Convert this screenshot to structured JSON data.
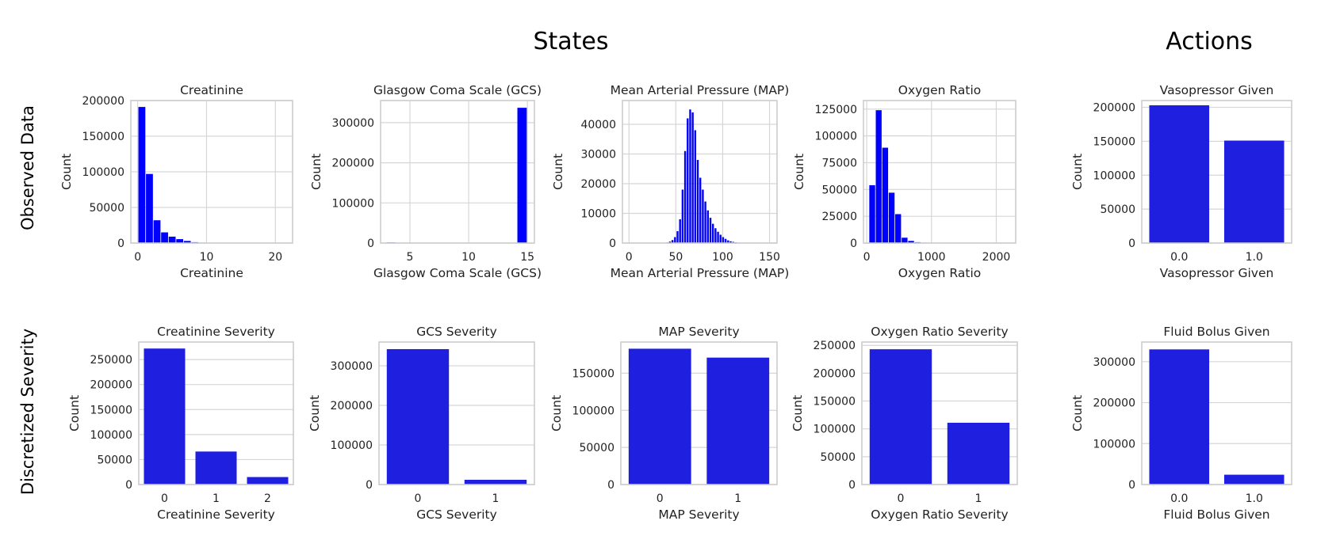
{
  "figure": {
    "section_titles": {
      "states": "States",
      "actions": "Actions"
    },
    "row_labels": {
      "observed": "Observed Data",
      "discretized": "Discretized Severity"
    }
  },
  "colors": {
    "bar": "#0000ff",
    "bar_categorical": "#1f1fe0",
    "grid": "#d6d6d6",
    "frame": "#cccccc"
  },
  "chart_data": [
    {
      "id": "creatinine",
      "type": "bar",
      "subtype": "histogram",
      "title": "Creatinine",
      "xlabel": "Creatinine",
      "ylabel": "Count",
      "xlim": [
        -1,
        22.5
      ],
      "ylim": [
        0,
        200000
      ],
      "xticks": [
        0,
        10,
        20
      ],
      "yticks": [
        0,
        50000,
        100000,
        150000,
        200000
      ],
      "bin_width": 1.1,
      "bins": [
        0.1,
        1.2,
        2.3,
        3.4,
        4.5,
        5.6,
        6.7,
        7.8,
        8.9,
        10.0
      ],
      "values": [
        191000,
        97000,
        32000,
        15000,
        9000,
        5500,
        3000,
        1200,
        600,
        300
      ]
    },
    {
      "id": "gcs",
      "type": "bar",
      "subtype": "histogram",
      "title": "Glasgow Coma Scale (GCS)",
      "xlabel": "Glasgow Coma Scale (GCS)",
      "ylabel": "Count",
      "xlim": [
        2.5,
        15.6
      ],
      "ylim": [
        0,
        355000
      ],
      "xticks": [
        5,
        10,
        15
      ],
      "yticks": [
        0,
        100000,
        200000,
        300000
      ],
      "bin_width": 0.85,
      "bins": [
        3.0,
        3.85,
        13.3,
        14.15
      ],
      "values": [
        1500,
        500,
        1000,
        337000
      ]
    },
    {
      "id": "map",
      "type": "bar",
      "subtype": "histogram",
      "title": "Mean Arterial Pressure (MAP)",
      "xlabel": "Mean Arterial Pressure (MAP)",
      "ylabel": "Count",
      "xlim": [
        -7,
        158
      ],
      "ylim": [
        0,
        48000
      ],
      "xticks": [
        0,
        50,
        100,
        150
      ],
      "yticks": [
        0,
        10000,
        20000,
        30000,
        40000
      ],
      "bin_width": 2.7,
      "bins": [
        40.0,
        42.7,
        45.4,
        48.1,
        50.8,
        53.5,
        56.2,
        58.9,
        61.6,
        64.3,
        67.0,
        69.7,
        72.4,
        75.1,
        77.8,
        80.5,
        83.2,
        85.9,
        88.6,
        91.3,
        94.0,
        96.7,
        99.4,
        102.1,
        104.8,
        107.5,
        110.2,
        112.9,
        115.6,
        118.3
      ],
      "values": [
        200,
        500,
        1000,
        2000,
        4000,
        8000,
        18000,
        31000,
        42000,
        45000,
        44000,
        38000,
        28000,
        22000,
        18000,
        14000,
        11000,
        8500,
        6500,
        5000,
        3800,
        2800,
        2000,
        1400,
        900,
        600,
        400,
        250,
        150,
        100
      ]
    },
    {
      "id": "oxygen",
      "type": "bar",
      "subtype": "histogram",
      "title": "Oxygen Ratio",
      "xlabel": "Oxygen Ratio",
      "ylabel": "Count",
      "xlim": [
        -50,
        2300
      ],
      "ylim": [
        0,
        133000
      ],
      "xticks": [
        0,
        1000,
        2000
      ],
      "yticks": [
        0,
        25000,
        50000,
        75000,
        100000,
        125000
      ],
      "bin_width": 100,
      "bins": [
        40,
        140,
        240,
        340,
        440,
        540,
        640,
        740,
        840,
        940,
        1040,
        1140,
        1240
      ],
      "values": [
        54000,
        124000,
        89000,
        47000,
        27000,
        5000,
        2000,
        800,
        400,
        200,
        100,
        50,
        30
      ]
    },
    {
      "id": "vasopressor",
      "type": "bar",
      "title": "Vasopressor Given",
      "xlabel": "Vasopressor Given",
      "ylabel": "Count",
      "categories": [
        "0.0",
        "1.0"
      ],
      "values": [
        203000,
        151000
      ],
      "ylim": [
        0,
        210000
      ],
      "yticks": [
        0,
        50000,
        100000,
        150000,
        200000
      ]
    },
    {
      "id": "creatinine_sev",
      "type": "bar",
      "title": "Creatinine Severity",
      "xlabel": "Creatinine Severity",
      "ylabel": "Count",
      "categories": [
        "0",
        "1",
        "2"
      ],
      "values": [
        272000,
        66000,
        15000
      ],
      "ylim": [
        0,
        285000
      ],
      "yticks": [
        0,
        50000,
        100000,
        150000,
        200000,
        250000
      ]
    },
    {
      "id": "gcs_sev",
      "type": "bar",
      "title": "GCS Severity",
      "xlabel": "GCS Severity",
      "ylabel": "Count",
      "categories": [
        "0",
        "1"
      ],
      "values": [
        342000,
        12000
      ],
      "ylim": [
        0,
        360000
      ],
      "yticks": [
        0,
        100000,
        200000,
        300000
      ]
    },
    {
      "id": "map_sev",
      "type": "bar",
      "title": "MAP Severity",
      "xlabel": "MAP Severity",
      "ylabel": "Count",
      "categories": [
        "0",
        "1"
      ],
      "values": [
        183000,
        171000
      ],
      "ylim": [
        0,
        192000
      ],
      "yticks": [
        0,
        50000,
        100000,
        150000
      ]
    },
    {
      "id": "oxygen_sev",
      "type": "bar",
      "title": "Oxygen Ratio Severity",
      "xlabel": "Oxygen Ratio Severity",
      "ylabel": "Count",
      "categories": [
        "0",
        "1"
      ],
      "values": [
        243000,
        111000
      ],
      "ylim": [
        0,
        256000
      ],
      "yticks": [
        0,
        50000,
        100000,
        150000,
        200000,
        250000
      ]
    },
    {
      "id": "fluid",
      "type": "bar",
      "title": "Fluid Bolus Given",
      "xlabel": "Fluid Bolus Given",
      "ylabel": "Count",
      "categories": [
        "0.0",
        "1.0"
      ],
      "values": [
        330000,
        24000
      ],
      "ylim": [
        0,
        348000
      ],
      "yticks": [
        0,
        100000,
        200000,
        300000
      ]
    }
  ]
}
